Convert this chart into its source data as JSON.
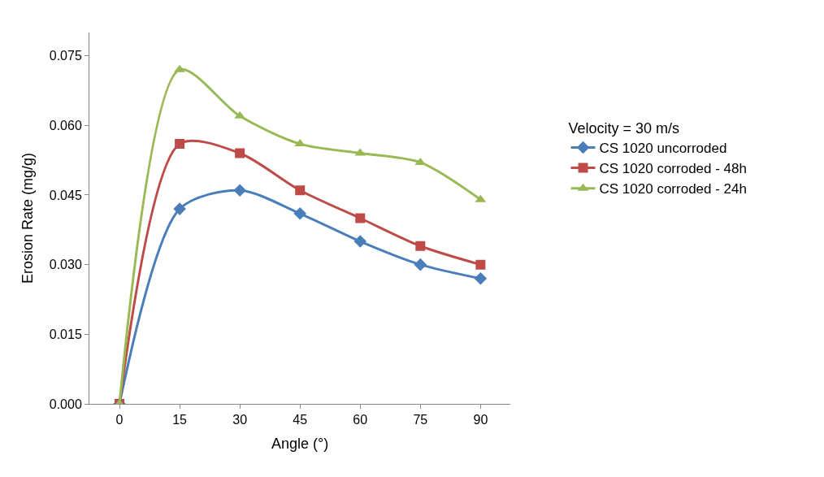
{
  "chart_data": {
    "type": "line",
    "xlabel": "Angle (°)",
    "ylabel": "Erosion Rate (mg/g)",
    "legend_title": "Velocity = 30 m/s",
    "categories": [
      "0",
      "15",
      "30",
      "45",
      "60",
      "75",
      "90"
    ],
    "series": [
      {
        "name": "CS 1020 uncorroded",
        "color": "#4a7ebb",
        "marker": "diamond",
        "values": [
          0,
          0.042,
          0.046,
          0.041,
          0.035,
          0.03,
          0.027
        ]
      },
      {
        "name": "CS 1020 corroded - 48h",
        "color": "#be4b48",
        "marker": "square",
        "values": [
          0,
          0.056,
          0.054,
          0.046,
          0.04,
          0.034,
          0.03
        ]
      },
      {
        "name": "CS 1020 corroded - 24h",
        "color": "#98b954",
        "marker": "triangle",
        "values": [
          0,
          0.072,
          0.062,
          0.056,
          0.054,
          0.052,
          0.044
        ]
      }
    ],
    "ylim": [
      0,
      0.08
    ],
    "yticks": [
      {
        "value": 0,
        "label": "0.000"
      },
      {
        "value": 0.015,
        "label": "0.015"
      },
      {
        "value": 0.03,
        "label": "0.030"
      },
      {
        "value": 0.045,
        "label": "0.045"
      },
      {
        "value": 0.06,
        "label": "0.060"
      },
      {
        "value": 0.075,
        "label": "0.075"
      }
    ],
    "legend": "right",
    "line_style": "solid"
  }
}
